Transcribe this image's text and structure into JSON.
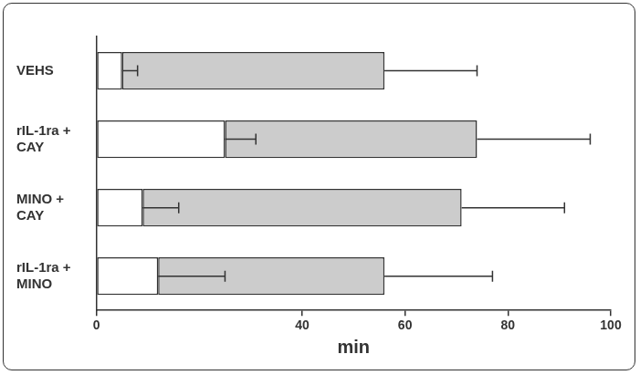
{
  "chart_data": {
    "type": "bar",
    "orientation": "horizontal",
    "stacked": true,
    "categories": [
      "VEHS",
      "rIL-1ra + CAY",
      "MINO + CAY",
      "rIL-1ra + MINO"
    ],
    "series": [
      {
        "color": "#ffffff",
        "values": [
          5,
          25,
          9,
          12
        ],
        "errors": [
          3,
          6,
          7,
          13
        ]
      },
      {
        "color": "#cccccc",
        "values": [
          51,
          49,
          62,
          44
        ],
        "errors": [
          18,
          22,
          20,
          21
        ]
      }
    ],
    "x_label": "min",
    "xlim": [
      0,
      100
    ],
    "xticks": [
      0,
      40,
      60,
      80,
      100
    ],
    "grid": false
  }
}
